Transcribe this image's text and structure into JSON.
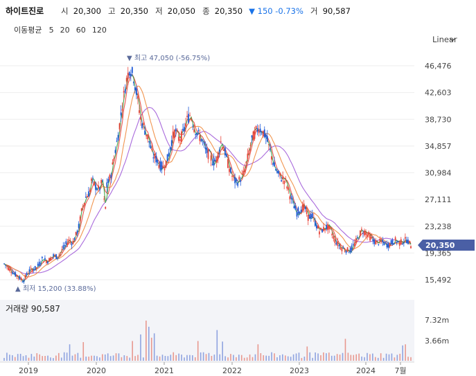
{
  "header": {
    "name": "하이트진로",
    "open_label": "시",
    "open": "20,300",
    "high_label": "고",
    "high": "20,350",
    "low_label": "저",
    "low": "20,050",
    "close_label": "종",
    "close": "20,350",
    "change": "▼ 150 -0.73%",
    "volume_label": "거",
    "volume": "90,587"
  },
  "ma_legend": {
    "label": "이동평균",
    "items": [
      {
        "text": "5",
        "color": "#2e9e3e"
      },
      {
        "text": "20",
        "color": "#e8443a"
      },
      {
        "text": "60",
        "color": "#f08a3c"
      },
      {
        "text": "120",
        "color": "#a05ad8"
      }
    ]
  },
  "scale_button": "Linear",
  "annotations": {
    "high": "▼ 최고 47,050 (-56.75%)",
    "low": "▲ 최저 15,200 (33.88%)"
  },
  "volume_panel": {
    "label": "거래량 90,587"
  },
  "last_price": "20,350",
  "colors": {
    "up": "#e8443a",
    "down": "#1f5ad8",
    "badge": "#4a5fa5",
    "ma120": "#a05ad8",
    "ma60": "#f08a3c",
    "ma20": "#e8443a",
    "ma5": "#2e9e3e"
  },
  "chart_data": {
    "type": "candlestick",
    "y_ticks": [
      "46,476",
      "42,603",
      "38,730",
      "34,857",
      "30,984",
      "27,111",
      "23,238",
      "19,365",
      "15,492"
    ],
    "ylim": [
      15492,
      46476
    ],
    "x_ticks": [
      "2019",
      "2020",
      "2021",
      "2022",
      "2023",
      "2024",
      "7월"
    ],
    "volume_ticks": [
      "7.32m",
      "3.66m"
    ],
    "high": 47050,
    "low": 15200,
    "last": 20350,
    "ma_periods": [
      5,
      20,
      60,
      120
    ],
    "price_path": [
      [
        0,
        17800
      ],
      [
        0.06,
        17000
      ],
      [
        0.12,
        16200
      ],
      [
        0.2,
        15300
      ],
      [
        0.26,
        16800
      ],
      [
        0.34,
        17200
      ],
      [
        0.4,
        18500
      ],
      [
        0.46,
        18200
      ],
      [
        0.52,
        19000
      ],
      [
        0.56,
        18800
      ],
      [
        0.62,
        20000
      ],
      [
        0.68,
        21200
      ],
      [
        0.72,
        20800
      ],
      [
        0.78,
        22800
      ],
      [
        0.82,
        25800
      ],
      [
        0.86,
        27500
      ],
      [
        0.9,
        28200
      ],
      [
        0.92,
        30000
      ],
      [
        0.96,
        29000
      ],
      [
        1.0,
        28500
      ],
      [
        1.04,
        30000
      ],
      [
        1.06,
        24500
      ],
      [
        1.08,
        29000
      ],
      [
        1.12,
        30500
      ],
      [
        1.16,
        33500
      ],
      [
        1.2,
        36500
      ],
      [
        1.24,
        40500
      ],
      [
        1.28,
        44000
      ],
      [
        1.32,
        46200
      ],
      [
        1.36,
        45000
      ],
      [
        1.4,
        42000
      ],
      [
        1.44,
        38500
      ],
      [
        1.48,
        37200
      ],
      [
        1.52,
        35800
      ],
      [
        1.56,
        33500
      ],
      [
        1.6,
        33000
      ],
      [
        1.64,
        32000
      ],
      [
        1.68,
        31800
      ],
      [
        1.72,
        33000
      ],
      [
        1.76,
        35500
      ],
      [
        1.8,
        37200
      ],
      [
        1.84,
        35800
      ],
      [
        1.88,
        36500
      ],
      [
        1.92,
        38500
      ],
      [
        1.96,
        39500
      ],
      [
        2.0,
        37500
      ],
      [
        2.04,
        36500
      ],
      [
        2.08,
        35800
      ],
      [
        2.12,
        34200
      ],
      [
        2.16,
        33500
      ],
      [
        2.2,
        32500
      ],
      [
        2.24,
        33000
      ],
      [
        2.28,
        35500
      ],
      [
        2.32,
        34200
      ],
      [
        2.36,
        32000
      ],
      [
        2.4,
        30500
      ],
      [
        2.44,
        29500
      ],
      [
        2.48,
        30000
      ],
      [
        2.52,
        30800
      ],
      [
        2.56,
        33000
      ],
      [
        2.6,
        35500
      ],
      [
        2.64,
        36800
      ],
      [
        2.68,
        37500
      ],
      [
        2.72,
        37000
      ],
      [
        2.76,
        36000
      ],
      [
        2.8,
        34000
      ],
      [
        2.84,
        32000
      ],
      [
        2.88,
        30800
      ],
      [
        2.92,
        30200
      ],
      [
        2.96,
        29800
      ],
      [
        3.0,
        28000
      ],
      [
        3.04,
        26500
      ],
      [
        3.08,
        25200
      ],
      [
        3.12,
        25800
      ],
      [
        3.16,
        26000
      ],
      [
        3.2,
        24500
      ],
      [
        3.24,
        24800
      ],
      [
        3.28,
        23500
      ],
      [
        3.32,
        22500
      ],
      [
        3.36,
        22800
      ],
      [
        3.4,
        23200
      ],
      [
        3.44,
        22500
      ],
      [
        3.48,
        21200
      ],
      [
        3.52,
        20500
      ],
      [
        3.56,
        20000
      ],
      [
        3.6,
        19800
      ],
      [
        3.64,
        19700
      ],
      [
        3.68,
        20500
      ],
      [
        3.72,
        21500
      ],
      [
        3.76,
        22600
      ],
      [
        3.8,
        22400
      ],
      [
        3.84,
        21800
      ],
      [
        3.88,
        21200
      ],
      [
        3.92,
        20800
      ],
      [
        3.96,
        21000
      ],
      [
        4.0,
        20800
      ],
      [
        4.04,
        20500
      ],
      [
        4.08,
        20900
      ],
      [
        4.12,
        21200
      ],
      [
        4.16,
        20800
      ],
      [
        4.2,
        21100
      ],
      [
        4.24,
        21300
      ],
      [
        4.28,
        20350
      ]
    ],
    "volume_profile": {
      "peaks": [
        [
          1.5,
          7.32
        ],
        [
          1.52,
          6.2
        ],
        [
          1.44,
          4.8
        ],
        [
          1.58,
          5.0
        ],
        [
          1.54,
          4.2
        ],
        [
          2.24,
          5.6
        ],
        [
          3.6,
          4.0
        ],
        [
          0.7,
          3.0
        ],
        [
          0.82,
          3.4
        ],
        [
          2.04,
          3.6
        ],
        [
          2.3,
          3.5
        ],
        [
          4.2,
          2.8
        ],
        [
          4.22,
          3.0
        ],
        [
          2.66,
          3.0
        ],
        [
          1.34,
          3.6
        ],
        [
          3.18,
          2.6
        ]
      ],
      "base": 1.2
    }
  }
}
